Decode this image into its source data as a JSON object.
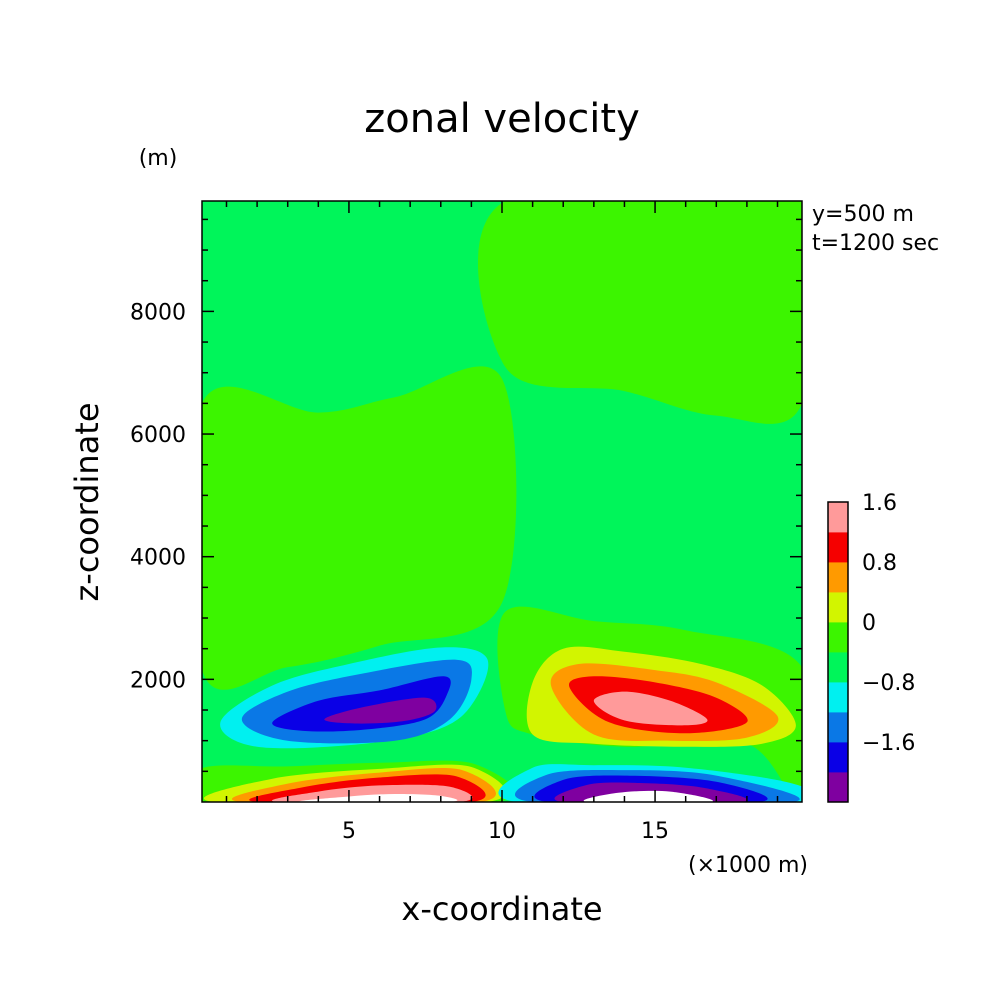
{
  "chart_data": {
    "type": "heatmap",
    "title": "zonal velocity",
    "xlabel": "x-coordinate",
    "ylabel": "z-coordinate",
    "x_unit": "(×1000 m)",
    "y_unit": "(m)",
    "annotations": [
      "y=500 m",
      "t=1200 sec"
    ],
    "xlim": [
      0.2,
      19.8
    ],
    "ylim": [
      0,
      9800
    ],
    "xticks": [
      5,
      10,
      15
    ],
    "xtick_labels": [
      "5",
      "10",
      "15"
    ],
    "yticks": [
      2000,
      4000,
      6000,
      8000
    ],
    "ytick_labels": [
      "2000",
      "4000",
      "6000",
      "8000"
    ],
    "grid": false,
    "colorbar": {
      "placement": "right",
      "levels": [
        -2.4,
        -2.0,
        -1.6,
        -1.2,
        -0.8,
        -0.4,
        0,
        0.4,
        0.8,
        1.2,
        1.6,
        2.0
      ],
      "colors": [
        "#7f00a0",
        "#0a00e6",
        "#0a78e6",
        "#00f0f0",
        "#00f55a",
        "#3cf500",
        "#d2f500",
        "#ff9a00",
        "#f50000",
        "#ff9a9a"
      ],
      "tick_values": [
        -1.6,
        -0.8,
        0,
        0.8,
        1.6
      ],
      "tick_labels": [
        "−1.6",
        "−0.8",
        "0",
        "0.8",
        "1.6"
      ]
    },
    "regions": [
      {
        "name": "positive-upper",
        "value_band": [
          0,
          0.4
        ],
        "color": "#3cf500",
        "points": [
          [
            0.2,
            2150
          ],
          [
            3,
            2200
          ],
          [
            6,
            2550
          ],
          [
            10,
            3250
          ],
          [
            10,
            6900
          ],
          [
            6.5,
            6600
          ],
          [
            4,
            6350
          ],
          [
            0.2,
            6500
          ]
        ]
      },
      {
        "name": "positive-upper-right",
        "value_band": [
          0,
          0.4
        ],
        "color": "#3cf500",
        "points": [
          [
            10.1,
            7100
          ],
          [
            14,
            6700
          ],
          [
            17,
            6300
          ],
          [
            19.8,
            6500
          ],
          [
            19.8,
            9800
          ],
          [
            10.1,
            9800
          ]
        ]
      },
      {
        "name": "positive-bottom-left",
        "value_band": [
          0,
          0.4
        ],
        "color": "#3cf500",
        "points": [
          [
            0.2,
            0
          ],
          [
            0.2,
            550
          ],
          [
            3,
            580
          ],
          [
            6,
            640
          ],
          [
            9.1,
            620
          ],
          [
            9.8,
            0
          ]
        ]
      },
      {
        "name": "positive-right-lobe",
        "value_band": [
          0,
          0.4
        ],
        "color": "#3cf500",
        "points": [
          [
            10.1,
            3100
          ],
          [
            13,
            2950
          ],
          [
            16,
            2800
          ],
          [
            19.8,
            2200
          ],
          [
            19.8,
            0
          ],
          [
            18,
            950
          ],
          [
            14,
            900
          ],
          [
            11,
            1100
          ],
          [
            10.1,
            1500
          ]
        ]
      },
      {
        "name": "left-lobe-c1",
        "value_band": [
          -0.8,
          -0.4
        ],
        "color": "#00f0f0",
        "points": [
          [
            0.8,
            1300
          ],
          [
            2.5,
            1900
          ],
          [
            5,
            2250
          ],
          [
            8,
            2520
          ],
          [
            9.5,
            2350
          ],
          [
            9.1,
            1650
          ],
          [
            8,
            1200
          ],
          [
            5.5,
            950
          ],
          [
            2,
            900
          ]
        ]
      },
      {
        "name": "left-lobe-c2",
        "value_band": [
          -1.2,
          -0.8
        ],
        "color": "#0a78e6",
        "points": [
          [
            1.5,
            1350
          ],
          [
            3,
            1800
          ],
          [
            5.5,
            2100
          ],
          [
            8.5,
            2320
          ],
          [
            9,
            2000
          ],
          [
            8.3,
            1350
          ],
          [
            6.5,
            1000
          ],
          [
            3,
            1000
          ]
        ]
      },
      {
        "name": "left-lobe-c3",
        "value_band": [
          -1.6,
          -1.2
        ],
        "color": "#0a00e6",
        "points": [
          [
            2.5,
            1300
          ],
          [
            4,
            1650
          ],
          [
            6,
            1820
          ],
          [
            8.1,
            2050
          ],
          [
            8.2,
            1750
          ],
          [
            7.5,
            1350
          ],
          [
            5.5,
            1180
          ],
          [
            3.5,
            1160
          ]
        ]
      },
      {
        "name": "left-lobe-c4",
        "value_band": [
          -2.0,
          -1.6
        ],
        "color": "#7f00a0",
        "points": [
          [
            4.2,
            1350
          ],
          [
            5.5,
            1550
          ],
          [
            7.5,
            1700
          ],
          [
            7.8,
            1480
          ],
          [
            6.8,
            1320
          ],
          [
            5.2,
            1280
          ]
        ]
      },
      {
        "name": "right-lobe-c1",
        "value_band": [
          0.4,
          0.8
        ],
        "color": "#d2f500",
        "points": [
          [
            11,
            1950
          ],
          [
            12,
            2500
          ],
          [
            14,
            2450
          ],
          [
            16.5,
            2250
          ],
          [
            18.5,
            1900
          ],
          [
            19.6,
            1250
          ],
          [
            18.5,
            950
          ],
          [
            16,
            900
          ],
          [
            13,
            950
          ],
          [
            11,
            1100
          ]
        ]
      },
      {
        "name": "right-lobe-c2",
        "value_band": [
          0.8,
          1.2
        ],
        "color": "#ff9a00",
        "points": [
          [
            11.6,
            1900
          ],
          [
            12.5,
            2250
          ],
          [
            15,
            2150
          ],
          [
            17,
            1950
          ],
          [
            19,
            1400
          ],
          [
            18,
            1050
          ],
          [
            15.5,
            1000
          ],
          [
            13,
            1100
          ]
        ]
      },
      {
        "name": "right-lobe-c3",
        "value_band": [
          1.2,
          1.6
        ],
        "color": "#f50000",
        "points": [
          [
            12.2,
            1880
          ],
          [
            13,
            2050
          ],
          [
            15,
            1950
          ],
          [
            17,
            1700
          ],
          [
            18,
            1300
          ],
          [
            16,
            1120
          ],
          [
            13.5,
            1300
          ]
        ]
      },
      {
        "name": "right-lobe-c4",
        "value_band": [
          1.6,
          2.0
        ],
        "color": "#ff9a9a",
        "points": [
          [
            13,
            1650
          ],
          [
            14,
            1800
          ],
          [
            15.5,
            1650
          ],
          [
            16.7,
            1350
          ],
          [
            16,
            1250
          ],
          [
            14,
            1330
          ]
        ]
      },
      {
        "name": "bottom-left-c1",
        "value_band": [
          0.4,
          0.8
        ],
        "color": "#d2f500",
        "points": [
          [
            0.6,
            0
          ],
          [
            2.5,
            380
          ],
          [
            6,
            540
          ],
          [
            9,
            570
          ],
          [
            9.5,
            0
          ]
        ]
      },
      {
        "name": "bottom-left-c2",
        "value_band": [
          0.8,
          1.2
        ],
        "color": "#ff9a00",
        "points": [
          [
            1.5,
            0
          ],
          [
            3,
            300
          ],
          [
            6,
            480
          ],
          [
            8.7,
            520
          ],
          [
            9.3,
            0
          ]
        ]
      },
      {
        "name": "bottom-left-c3",
        "value_band": [
          1.2,
          1.6
        ],
        "color": "#f50000",
        "points": [
          [
            2,
            0
          ],
          [
            3.5,
            240
          ],
          [
            6,
            400
          ],
          [
            8.5,
            420
          ],
          [
            9,
            0
          ]
        ]
      },
      {
        "name": "bottom-left-c4",
        "value_band": [
          1.6,
          2.0
        ],
        "color": "#ff9a9a",
        "points": [
          [
            2.7,
            0
          ],
          [
            4,
            170
          ],
          [
            6,
            270
          ],
          [
            8.3,
            250
          ],
          [
            8.6,
            0
          ]
        ]
      },
      {
        "name": "bottom-left-c5",
        "value_band": [
          2.0,
          2.4
        ],
        "color": "#ffffff",
        "points": [
          [
            3.5,
            0
          ],
          [
            5,
            90
          ],
          [
            6.5,
            130
          ],
          [
            8,
            100
          ],
          [
            8.2,
            0
          ]
        ]
      },
      {
        "name": "bottom-right-c1",
        "value_band": [
          -0.8,
          -0.4
        ],
        "color": "#00f0f0",
        "points": [
          [
            10.5,
            0
          ],
          [
            11,
            560
          ],
          [
            13,
            600
          ],
          [
            16,
            560
          ],
          [
            19.5,
            300
          ],
          [
            19.8,
            0
          ]
        ]
      },
      {
        "name": "bottom-right-c2",
        "value_band": [
          -1.2,
          -0.8
        ],
        "color": "#0a78e6",
        "points": [
          [
            11,
            0
          ],
          [
            11.5,
            450
          ],
          [
            14,
            520
          ],
          [
            17,
            430
          ],
          [
            19.5,
            0
          ]
        ]
      },
      {
        "name": "bottom-right-c3",
        "value_band": [
          -1.6,
          -1.2
        ],
        "color": "#0a00e6",
        "points": [
          [
            11.5,
            0
          ],
          [
            12,
            360
          ],
          [
            14,
            430
          ],
          [
            17,
            330
          ],
          [
            18.4,
            0
          ]
        ]
      },
      {
        "name": "bottom-right-c4",
        "value_band": [
          -2.0,
          -1.6
        ],
        "color": "#7f00a0",
        "points": [
          [
            12,
            0
          ],
          [
            12.8,
            280
          ],
          [
            14.5,
            310
          ],
          [
            16.6,
            230
          ],
          [
            17.8,
            0
          ]
        ]
      },
      {
        "name": "bottom-right-c5",
        "value_band": [
          -2.4,
          -2.0
        ],
        "color": "#ffffff",
        "points": [
          [
            12.8,
            0
          ],
          [
            13.8,
            150
          ],
          [
            15.5,
            170
          ],
          [
            16.8,
            0
          ]
        ]
      }
    ]
  }
}
